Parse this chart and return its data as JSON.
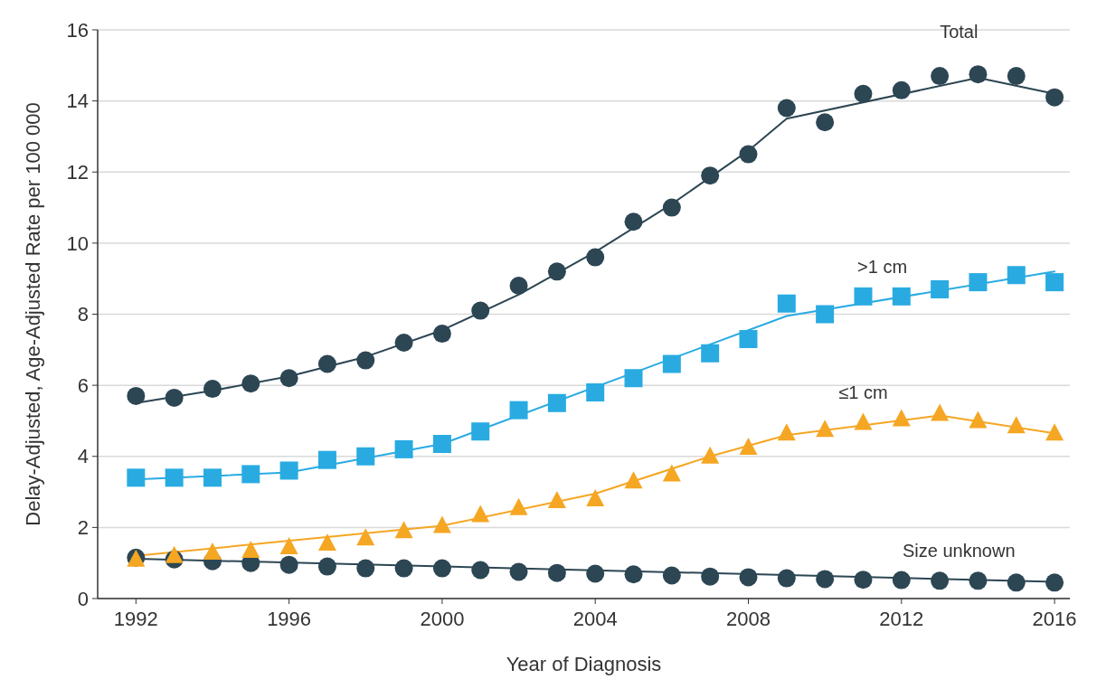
{
  "chart_data": {
    "type": "scatter",
    "xlabel": "Year of Diagnosis",
    "ylabel": "Delay-Adjusted, Age-Adjusted Rate per 100 000",
    "x": [
      1992,
      1993,
      1994,
      1995,
      1996,
      1997,
      1998,
      1999,
      2000,
      2001,
      2002,
      2003,
      2004,
      2005,
      2006,
      2007,
      2008,
      2009,
      2010,
      2011,
      2012,
      2013,
      2014,
      2015,
      2016
    ],
    "xlim": [
      1991,
      2016.4
    ],
    "xticks": [
      1992,
      1996,
      2000,
      2004,
      2008,
      2012,
      2016
    ],
    "ylim": [
      0,
      16
    ],
    "yticks": [
      0,
      2,
      4,
      6,
      8,
      10,
      12,
      14,
      16
    ],
    "grid": "y",
    "series": [
      {
        "name": "Total",
        "color": "#2c4653",
        "marker": "circle",
        "values": [
          5.7,
          5.65,
          5.9,
          6.05,
          6.2,
          6.6,
          6.7,
          7.2,
          7.45,
          8.1,
          8.8,
          9.2,
          9.6,
          10.6,
          11.0,
          11.9,
          12.5,
          13.8,
          13.4,
          14.2,
          14.3,
          14.7,
          14.75,
          14.7,
          14.1
        ]
      },
      {
        "name": ">1 cm",
        "color": "#29abe2",
        "marker": "square",
        "values": [
          3.4,
          3.4,
          3.4,
          3.5,
          3.6,
          3.9,
          4.0,
          4.2,
          4.35,
          4.7,
          5.3,
          5.5,
          5.8,
          6.2,
          6.6,
          6.9,
          7.3,
          8.3,
          8.0,
          8.5,
          8.5,
          8.7,
          8.9,
          9.1,
          8.9
        ]
      },
      {
        "name": "≤1 cm",
        "color": "#f5a623",
        "marker": "triangle",
        "values": [
          1.1,
          1.2,
          1.3,
          1.35,
          1.45,
          1.55,
          1.7,
          1.9,
          2.05,
          2.35,
          2.55,
          2.75,
          2.8,
          3.3,
          3.5,
          4.0,
          4.25,
          4.65,
          4.75,
          4.95,
          5.05,
          5.2,
          5.0,
          4.85,
          4.65
        ]
      },
      {
        "name": "Size unknown",
        "color": "#2c4653",
        "marker": "circle",
        "values": [
          1.15,
          1.1,
          1.05,
          1.0,
          0.95,
          0.9,
          0.85,
          0.85,
          0.85,
          0.8,
          0.75,
          0.72,
          0.7,
          0.68,
          0.65,
          0.62,
          0.6,
          0.57,
          0.55,
          0.53,
          0.52,
          0.5,
          0.5,
          0.45,
          0.45
        ]
      },
      {
        "type": "line",
        "color": "#2c4653",
        "x": [
          1992,
          1994,
          1996,
          1998,
          2000,
          2002,
          2004,
          2006,
          2008,
          2009,
          2014,
          2016
        ],
        "values": [
          5.5,
          5.85,
          6.25,
          6.8,
          7.55,
          8.55,
          9.75,
          11.1,
          12.6,
          13.5,
          14.65,
          14.2
        ]
      },
      {
        "type": "line",
        "color": "#29abe2",
        "x": [
          1992,
          1996,
          2000,
          2009,
          2016
        ],
        "values": [
          3.35,
          3.55,
          4.35,
          7.95,
          9.2
        ]
      },
      {
        "type": "line",
        "color": "#f5a623",
        "x": [
          1992,
          2000,
          2004,
          2007,
          2009,
          2013,
          2016
        ],
        "values": [
          1.2,
          2.05,
          2.95,
          4.0,
          4.6,
          5.15,
          4.65
        ]
      },
      {
        "type": "line",
        "color": "#2c4653",
        "x": [
          1992,
          2016
        ],
        "values": [
          1.12,
          0.47
        ]
      }
    ]
  }
}
